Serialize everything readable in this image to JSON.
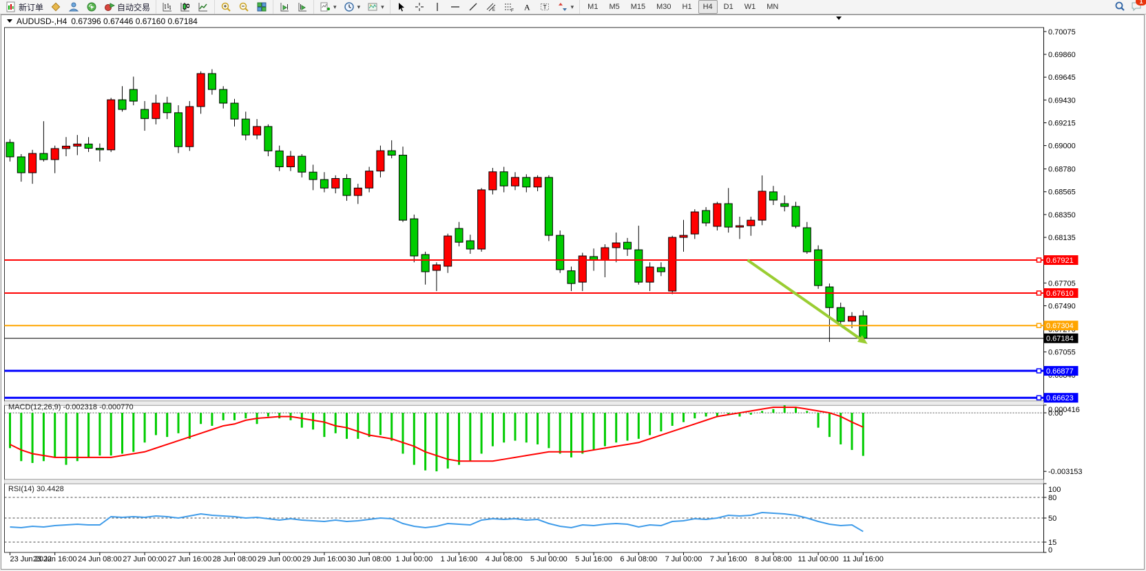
{
  "toolbar": {
    "groups": [
      {
        "items": [
          {
            "name": "new-order-button",
            "icon": "new-order-icon",
            "label": "新订单"
          },
          {
            "name": "profile-button",
            "icon": "profile-icon"
          },
          {
            "name": "market-watch-button",
            "icon": "market-watch-icon"
          },
          {
            "name": "signals-button",
            "icon": "signal-icon"
          },
          {
            "name": "autotrade-button",
            "icon": "autotrade-icon",
            "label": "自动交易"
          }
        ]
      },
      {
        "items": [
          {
            "name": "bars-chart-button",
            "icon": "chart-bars-icon"
          },
          {
            "name": "candles-chart-button",
            "icon": "chart-candles-icon"
          },
          {
            "name": "line-chart-button",
            "icon": "chart-line-icon"
          }
        ]
      },
      {
        "items": [
          {
            "name": "zoom-in-button",
            "icon": "zoom-in-icon"
          },
          {
            "name": "zoom-out-button",
            "icon": "zoom-out-icon"
          },
          {
            "name": "tile-windows-button",
            "icon": "tile-windows-icon"
          }
        ]
      },
      {
        "items": [
          {
            "name": "shift-end-button",
            "icon": "shift-chart-icon"
          },
          {
            "name": "autoscroll-button",
            "icon": "autoscroll-icon"
          }
        ]
      },
      {
        "items": [
          {
            "name": "indicators-button",
            "icon": "add-indicator-icon",
            "caret": true
          },
          {
            "name": "periods-button",
            "icon": "period-icon",
            "caret": true
          },
          {
            "name": "templates-button",
            "icon": "template-icon",
            "caret": true
          }
        ]
      },
      {
        "items": [
          {
            "name": "cursor-button",
            "icon": "cursor-icon"
          },
          {
            "name": "crosshair-button",
            "icon": "crosshair-icon"
          },
          {
            "name": "vline-button",
            "icon": "vline-icon"
          },
          {
            "name": "hline-button",
            "icon": "hline-icon"
          },
          {
            "name": "trendline-button",
            "icon": "trendline-icon"
          },
          {
            "name": "channel-button",
            "icon": "channel-icon"
          },
          {
            "name": "fibonacci-button",
            "icon": "fibo-icon"
          },
          {
            "name": "text-button",
            "icon": "text-icon"
          },
          {
            "name": "label-button",
            "icon": "label-icon"
          },
          {
            "name": "arrows-button",
            "icon": "shapes-icon",
            "caret": true
          }
        ]
      }
    ],
    "timeframes": [
      "M1",
      "M5",
      "M15",
      "M30",
      "H1",
      "H4",
      "D1",
      "W1",
      "MN"
    ],
    "active_timeframe": "H4",
    "notifications_badge": "1"
  },
  "chart_window": {
    "title_symbol": "AUDUSD-,H4",
    "title_ohlc": "0.67396 0.67446 0.67160 0.67184"
  },
  "indicators": {
    "macd_label": "MACD(12,26,9) -0.002318 -0.000770",
    "rsi_label": "RSI(14) 30.4428"
  },
  "chart_data": {
    "type": "candlestick",
    "symbol": "AUDUSD-",
    "timeframe": "H4",
    "colors": {
      "up": "#FF0000",
      "down": "#00CC00",
      "wick": "#000000",
      "signal": "#FF0000",
      "rsi": "#3E9BE9",
      "arrow": "#9ACD32"
    },
    "price_axis_ticks": [
      "0.70075",
      "0.69860",
      "0.69645",
      "0.69430",
      "0.69215",
      "0.69000",
      "0.68780",
      "0.68565",
      "0.68350",
      "0.68135",
      "0.67705",
      "0.67490",
      "0.67270",
      "0.67055",
      "0.66840"
    ],
    "price_ylim": [
      0.66592,
      0.70113
    ],
    "x_labels": [
      "23 Jun 2022",
      "23 Jun 16:00",
      "24 Jun 08:00",
      "27 Jun 00:00",
      "27 Jun 16:00",
      "28 Jun 08:00",
      "29 Jun 00:00",
      "29 Jun 16:00",
      "30 Jun 08:00",
      "1 Jul 00:00",
      "1 Jul 16:00",
      "4 Jul 08:00",
      "5 Jul 00:00",
      "5 Jul 16:00",
      "6 Jul 08:00",
      "7 Jul 00:00",
      "7 Jul 16:00",
      "8 Jul 08:00",
      "11 Jul 00:00",
      "11 Jul 16:00"
    ],
    "x_label_every": 4,
    "ohlc": [
      [
        0.6903,
        0.6906,
        0.6885,
        0.68894
      ],
      [
        0.68894,
        0.6892,
        0.6866,
        0.68744
      ],
      [
        0.68744,
        0.6896,
        0.6864,
        0.68926
      ],
      [
        0.68926,
        0.6923,
        0.6885,
        0.68868
      ],
      [
        0.68868,
        0.69,
        0.6874,
        0.68972
      ],
      [
        0.68972,
        0.6908,
        0.689,
        0.68995
      ],
      [
        0.68995,
        0.691,
        0.6891,
        0.69015
      ],
      [
        0.69015,
        0.6908,
        0.6894,
        0.68975
      ],
      [
        0.68975,
        0.6902,
        0.6885,
        0.6896
      ],
      [
        0.6896,
        0.6945,
        0.6894,
        0.69432
      ],
      [
        0.69432,
        0.6956,
        0.6932,
        0.69341
      ],
      [
        0.69529,
        0.6965,
        0.6938,
        0.69419
      ],
      [
        0.69341,
        0.6942,
        0.6914,
        0.69255
      ],
      [
        0.69255,
        0.6948,
        0.692,
        0.694
      ],
      [
        0.694,
        0.6946,
        0.6925,
        0.6931
      ],
      [
        0.6931,
        0.6938,
        0.6893,
        0.6899
      ],
      [
        0.6899,
        0.6942,
        0.6895,
        0.69368
      ],
      [
        0.69368,
        0.697,
        0.693,
        0.69679
      ],
      [
        0.69679,
        0.6972,
        0.6948,
        0.69529
      ],
      [
        0.69529,
        0.6956,
        0.6935,
        0.694
      ],
      [
        0.694,
        0.6944,
        0.6918,
        0.6925
      ],
      [
        0.6925,
        0.6932,
        0.6905,
        0.691
      ],
      [
        0.691,
        0.6925,
        0.6906,
        0.6918
      ],
      [
        0.6918,
        0.692,
        0.689,
        0.6895
      ],
      [
        0.6895,
        0.69,
        0.6876,
        0.688
      ],
      [
        0.688,
        0.6895,
        0.6876,
        0.689
      ],
      [
        0.689,
        0.6892,
        0.687,
        0.6875
      ],
      [
        0.6875,
        0.6882,
        0.6858,
        0.6868
      ],
      [
        0.6868,
        0.6875,
        0.6856,
        0.686
      ],
      [
        0.686,
        0.6872,
        0.6855,
        0.6869
      ],
      [
        0.6869,
        0.6873,
        0.6848,
        0.6853
      ],
      [
        0.6853,
        0.6864,
        0.6845,
        0.686
      ],
      [
        0.686,
        0.688,
        0.6856,
        0.6876
      ],
      [
        0.6876,
        0.69,
        0.687,
        0.68952
      ],
      [
        0.68952,
        0.6905,
        0.6888,
        0.6891
      ],
      [
        0.6891,
        0.6899,
        0.6828,
        0.68297
      ],
      [
        0.6831,
        0.6835,
        0.679,
        0.6796
      ],
      [
        0.67973,
        0.68,
        0.6769,
        0.67811
      ],
      [
        0.67824,
        0.679,
        0.67629,
        0.67876
      ],
      [
        0.67863,
        0.6817,
        0.678,
        0.68148
      ],
      [
        0.68219,
        0.6828,
        0.6805,
        0.68089
      ],
      [
        0.68103,
        0.6816,
        0.6798,
        0.68025
      ],
      [
        0.68025,
        0.686,
        0.68,
        0.68583
      ],
      [
        0.68583,
        0.6879,
        0.6854,
        0.68753
      ],
      [
        0.68753,
        0.688,
        0.6856,
        0.6862
      ],
      [
        0.6862,
        0.6875,
        0.6858,
        0.687
      ],
      [
        0.687,
        0.6873,
        0.6856,
        0.6861
      ],
      [
        0.6861,
        0.6872,
        0.6857,
        0.687
      ],
      [
        0.687,
        0.6872,
        0.681,
        0.68154
      ],
      [
        0.68154,
        0.682,
        0.678,
        0.67831
      ],
      [
        0.6782,
        0.6786,
        0.67629,
        0.677
      ],
      [
        0.67713,
        0.6799,
        0.67629,
        0.6796
      ],
      [
        0.67954,
        0.6803,
        0.6782,
        0.67921
      ],
      [
        0.67921,
        0.6807,
        0.67759,
        0.68038
      ],
      [
        0.68038,
        0.6818,
        0.679,
        0.68083
      ],
      [
        0.68089,
        0.6813,
        0.6796,
        0.68025
      ],
      [
        0.68018,
        0.68245,
        0.6769,
        0.67713
      ],
      [
        0.67713,
        0.679,
        0.67629,
        0.67856
      ],
      [
        0.6785,
        0.679,
        0.6777,
        0.67811
      ],
      [
        0.67629,
        0.6815,
        0.676,
        0.68135
      ],
      [
        0.68135,
        0.683,
        0.68,
        0.68154
      ],
      [
        0.68167,
        0.684,
        0.6812,
        0.68375
      ],
      [
        0.68388,
        0.6842,
        0.6824,
        0.68271
      ],
      [
        0.68239,
        0.6847,
        0.682,
        0.68453
      ],
      [
        0.68453,
        0.686,
        0.6818,
        0.68232
      ],
      [
        0.68232,
        0.6833,
        0.6812,
        0.68245
      ],
      [
        0.68245,
        0.6833,
        0.6815,
        0.68297
      ],
      [
        0.68297,
        0.68719,
        0.6825,
        0.6857
      ],
      [
        0.68564,
        0.6862,
        0.6844,
        0.68486
      ],
      [
        0.68453,
        0.6853,
        0.6838,
        0.68427
      ],
      [
        0.68427,
        0.6847,
        0.6822,
        0.68239
      ],
      [
        0.68226,
        0.6828,
        0.6798,
        0.67999
      ],
      [
        0.68018,
        0.6806,
        0.6765,
        0.67681
      ],
      [
        0.67668,
        0.677,
        0.67149,
        0.67473
      ],
      [
        0.67473,
        0.6752,
        0.673,
        0.67343
      ],
      [
        0.67345,
        0.6743,
        0.6728,
        0.6739
      ],
      [
        0.67396,
        0.67446,
        0.6716,
        0.67184
      ]
    ],
    "h_lines": [
      {
        "price": 0.67921,
        "label": "0.67921",
        "color": "#FF0000",
        "width": 2,
        "marker": true
      },
      {
        "price": 0.6761,
        "label": "0.67610",
        "color": "#FF0000",
        "width": 2,
        "marker": true
      },
      {
        "price": 0.67304,
        "label": "0.67304",
        "color": "#FFA500",
        "width": 2,
        "marker": true
      },
      {
        "price": 0.67184,
        "label": "0.67184",
        "color": "#000000",
        "width": 1,
        "marker": false
      },
      {
        "price": 0.66877,
        "label": "0.66877",
        "color": "#0000FF",
        "width": 3,
        "marker": true
      },
      {
        "price": 0.66623,
        "label": "0.66623",
        "color": "#0000FF",
        "width": 3,
        "marker": true
      }
    ],
    "arrow": {
      "from_index": 65.7,
      "from_price": 0.67921,
      "to_index": 76.4,
      "to_price": 0.6713,
      "color": "#9ACD32"
    },
    "macd": {
      "params": "12,26,9",
      "value": -0.002318,
      "signal_value": -0.00077,
      "ylim": [
        -0.00359,
        0.00041
      ],
      "axis_ticks": [
        {
          "v": 0.000416,
          "label": "0.000416"
        },
        {
          "v": 0.0,
          "label": "0.00"
        },
        {
          "v": -0.003153,
          "label": "-0.003153"
        }
      ],
      "histogram": [
        -0.0019,
        -0.0026,
        -0.0027,
        -0.0026,
        -0.0024,
        -0.0028,
        -0.0026,
        -0.0024,
        -0.0023,
        -0.0023,
        -0.0022,
        -0.0021,
        -0.0016,
        -0.0012,
        -0.0013,
        -0.0011,
        -0.0014,
        -0.0006,
        -0.0007,
        -0.0004,
        -0.0004,
        -0.0003,
        -0.0006,
        -0.0002,
        -0.0003,
        -0.0004,
        -0.0008,
        -0.0009,
        -0.0013,
        -0.0011,
        -0.0014,
        -0.0014,
        -0.0013,
        -0.0012,
        -0.0015,
        -0.0022,
        -0.0028,
        -0.0031,
        -0.00315,
        -0.003,
        -0.0028,
        -0.0026,
        -0.0022,
        -0.0018,
        -0.0016,
        -0.0015,
        -0.0016,
        -0.0017,
        -0.0019,
        -0.0022,
        -0.0024,
        -0.0022,
        -0.002,
        -0.0018,
        -0.0016,
        -0.0015,
        -0.0014,
        -0.0012,
        -0.001,
        -0.0007,
        -0.0005,
        -0.0003,
        -0.0002,
        -0.0002,
        -0.0001,
        -0.0002,
        -0.0001,
        0.0001,
        0.0002,
        0.0004,
        0.0003,
        0.0001,
        -0.0008,
        -0.0013,
        -0.0017,
        -0.002,
        -0.002318
      ],
      "signal": [
        -0.0017,
        -0.002,
        -0.0022,
        -0.0023,
        -0.0024,
        -0.0024,
        -0.0024,
        -0.0024,
        -0.0024,
        -0.0024,
        -0.0023,
        -0.0022,
        -0.0021,
        -0.0019,
        -0.0017,
        -0.0015,
        -0.0013,
        -0.0011,
        -0.0009,
        -0.0007,
        -0.0006,
        -0.0004,
        -0.0003,
        -0.00025,
        -0.0002,
        -0.0002,
        -0.0003,
        -0.0004,
        -0.0005,
        -0.0007,
        -0.0008,
        -0.001,
        -0.0012,
        -0.0013,
        -0.0014,
        -0.0016,
        -0.0018,
        -0.0021,
        -0.0023,
        -0.0025,
        -0.0026,
        -0.0026,
        -0.0026,
        -0.0026,
        -0.0025,
        -0.0024,
        -0.0023,
        -0.0022,
        -0.0021,
        -0.0021,
        -0.0021,
        -0.0021,
        -0.002,
        -0.0019,
        -0.0018,
        -0.0017,
        -0.0016,
        -0.0014,
        -0.0012,
        -0.001,
        -0.0008,
        -0.0006,
        -0.0004,
        -0.0002,
        -0.0001,
        0.0,
        0.0001,
        0.0002,
        0.0003,
        0.0003,
        0.0003,
        0.0002,
        0.0001,
        0.0,
        -0.0002,
        -0.0005,
        -0.00077
      ]
    },
    "rsi": {
      "period": "14",
      "value": 30.4428,
      "ylim": [
        0,
        100
      ],
      "axis_ticks": [
        {
          "v": 100,
          "label": "100"
        },
        {
          "v": 80,
          "label": "80"
        },
        {
          "v": 50,
          "label": "50"
        },
        {
          "v": 15,
          "label": "15"
        },
        {
          "v": 0,
          "label": "0"
        }
      ],
      "levels": [
        80,
        50,
        15
      ],
      "values": [
        37,
        36,
        38,
        37,
        39,
        40,
        41,
        40,
        40,
        52,
        51,
        52,
        51,
        53,
        52,
        50,
        53,
        56,
        54,
        53,
        52,
        50,
        51,
        49,
        47,
        49,
        47,
        46,
        45,
        47,
        45,
        46,
        48,
        50,
        49,
        42,
        38,
        36,
        38,
        42,
        41,
        40,
        47,
        49,
        48,
        49,
        47,
        48,
        42,
        38,
        36,
        40,
        39,
        41,
        42,
        41,
        37,
        40,
        39,
        45,
        46,
        49,
        48,
        50,
        54,
        53,
        54,
        58,
        57,
        56,
        54,
        50,
        45,
        41,
        39,
        40,
        30.44
      ]
    }
  }
}
